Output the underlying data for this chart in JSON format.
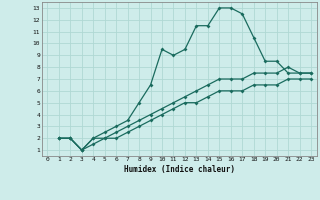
{
  "title": "",
  "xlabel": "Humidex (Indice chaleur)",
  "bg_color": "#ceecea",
  "line_color": "#1a6b5e",
  "grid_color": "#b0d8d4",
  "xlim": [
    -0.5,
    23.5
  ],
  "ylim": [
    0.5,
    13.5
  ],
  "xticks": [
    0,
    1,
    2,
    3,
    4,
    5,
    6,
    7,
    8,
    9,
    10,
    11,
    12,
    13,
    14,
    15,
    16,
    17,
    18,
    19,
    20,
    21,
    22,
    23
  ],
  "yticks": [
    1,
    2,
    3,
    4,
    5,
    6,
    7,
    8,
    9,
    10,
    11,
    12,
    13
  ],
  "line1_x": [
    1,
    2,
    3,
    4,
    5,
    6,
    7,
    8,
    9,
    10,
    11,
    12,
    13,
    14,
    15,
    16,
    17,
    18,
    19,
    20,
    21,
    22,
    23
  ],
  "line1_y": [
    2,
    2,
    1,
    2,
    2.5,
    3,
    3.5,
    5,
    6.5,
    9.5,
    9,
    9.5,
    11.5,
    11.5,
    13,
    13,
    12.5,
    10.5,
    8.5,
    8.5,
    7.5,
    7.5,
    7.5
  ],
  "line2_x": [
    1,
    2,
    3,
    4,
    5,
    6,
    7,
    8,
    9,
    10,
    11,
    12,
    13,
    14,
    15,
    16,
    17,
    18,
    19,
    20,
    21,
    22,
    23
  ],
  "line2_y": [
    2,
    2,
    1,
    2,
    2,
    2.5,
    3,
    3.5,
    4,
    4.5,
    5,
    5.5,
    6,
    6.5,
    7,
    7,
    7,
    7.5,
    7.5,
    7.5,
    8,
    7.5,
    7.5
  ],
  "line3_x": [
    1,
    2,
    3,
    4,
    5,
    6,
    7,
    8,
    9,
    10,
    11,
    12,
    13,
    14,
    15,
    16,
    17,
    18,
    19,
    20,
    21,
    22,
    23
  ],
  "line3_y": [
    2,
    2,
    1,
    1.5,
    2,
    2,
    2.5,
    3,
    3.5,
    4,
    4.5,
    5,
    5,
    5.5,
    6,
    6,
    6,
    6.5,
    6.5,
    6.5,
    7,
    7,
    7
  ]
}
